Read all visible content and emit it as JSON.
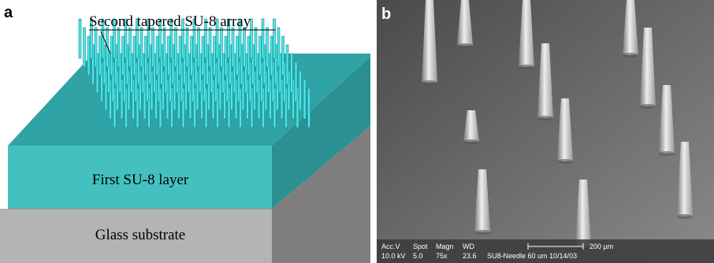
{
  "panel_a": {
    "label": "a",
    "array_label": "Second tapered SU-8 array",
    "layer_label": "First SU-8 layer",
    "substrate_label": "Glass substrate"
  },
  "panel_b": {
    "label": "b",
    "info_headers": [
      "Acc.V",
      "Spot",
      "Magn",
      "WD"
    ],
    "info_values": [
      "10.0 kV",
      "5.0",
      "75x",
      "23.6"
    ],
    "scale_label": "200 µm",
    "caption": "SU8-Needle 60 um 10/14/03"
  }
}
